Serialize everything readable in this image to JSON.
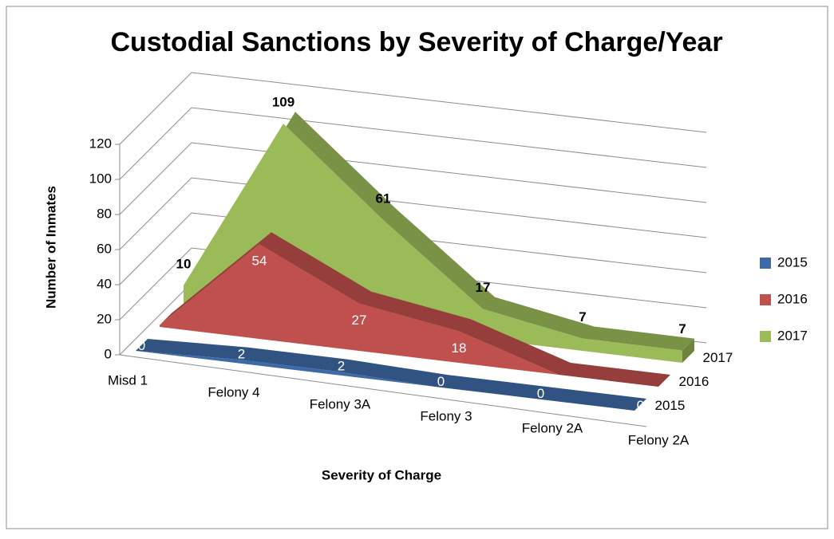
{
  "chart_data": {
    "type": "area3d",
    "title": "Custodial Sanctions by Severity of Charge/Year",
    "ylabel": "Number of Inmates",
    "xlabel": "Severity of Charge",
    "categories": [
      "Misd 1",
      "Felony 4",
      "Felony 3A",
      "Felony 3",
      "Felony 2A",
      "Felony 2A"
    ],
    "series": [
      {
        "name": "2015",
        "color": "#3d6aa6",
        "values": [
          0,
          2,
          2,
          0,
          0,
          0
        ]
      },
      {
        "name": "2016",
        "color": "#c0504d",
        "values": [
          1,
          54,
          27,
          18,
          0,
          0
        ]
      },
      {
        "name": "2017",
        "color": "#9bbb59",
        "values": [
          10,
          109,
          61,
          17,
          7,
          7
        ]
      }
    ],
    "ylim": [
      0,
      120
    ],
    "yticks": [
      0,
      20,
      40,
      60,
      80,
      100,
      120
    ],
    "grid": true,
    "legend": "right"
  }
}
